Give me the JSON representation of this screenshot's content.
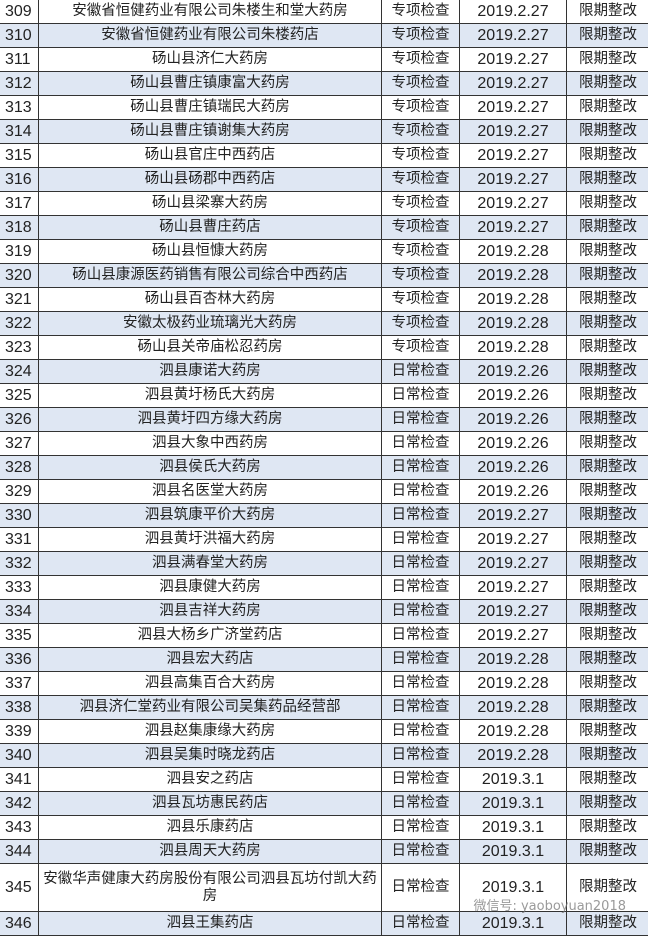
{
  "rows": [
    {
      "no": "309",
      "name": "安徽省恒健药业有限公司朱楼生和堂大药房",
      "type": "专项检查",
      "date": "2019.2.27",
      "result": "限期整改"
    },
    {
      "no": "310",
      "name": "安徽省恒健药业有限公司朱楼药店",
      "type": "专项检查",
      "date": "2019.2.27",
      "result": "限期整改"
    },
    {
      "no": "311",
      "name": "砀山县济仁大药房",
      "type": "专项检查",
      "date": "2019.2.27",
      "result": "限期整改"
    },
    {
      "no": "312",
      "name": "砀山县曹庄镇康富大药房",
      "type": "专项检查",
      "date": "2019.2.27",
      "result": "限期整改"
    },
    {
      "no": "313",
      "name": "砀山县曹庄镇瑞民大药房",
      "type": "专项检查",
      "date": "2019.2.27",
      "result": "限期整改"
    },
    {
      "no": "314",
      "name": "砀山县曹庄镇谢集大药房",
      "type": "专项检查",
      "date": "2019.2.27",
      "result": "限期整改"
    },
    {
      "no": "315",
      "name": "砀山县官庄中西药店",
      "type": "专项检查",
      "date": "2019.2.27",
      "result": "限期整改"
    },
    {
      "no": "316",
      "name": "砀山县砀郡中西药店",
      "type": "专项检查",
      "date": "2019.2.27",
      "result": "限期整改"
    },
    {
      "no": "317",
      "name": "砀山县梁寨大药房",
      "type": "专项检查",
      "date": "2019.2.27",
      "result": "限期整改"
    },
    {
      "no": "318",
      "name": "砀山县曹庄药店",
      "type": "专项检查",
      "date": "2019.2.27",
      "result": "限期整改"
    },
    {
      "no": "319",
      "name": "砀山县恒慷大药房",
      "type": "专项检查",
      "date": "2019.2.28",
      "result": "限期整改"
    },
    {
      "no": "320",
      "name": "砀山县康源医药销售有限公司综合中西药店",
      "type": "专项检查",
      "date": "2019.2.28",
      "result": "限期整改"
    },
    {
      "no": "321",
      "name": "砀山县百杏林大药房",
      "type": "专项检查",
      "date": "2019.2.28",
      "result": "限期整改"
    },
    {
      "no": "322",
      "name": "安徽太极药业琉璃光大药房",
      "type": "专项检查",
      "date": "2019.2.28",
      "result": "限期整改"
    },
    {
      "no": "323",
      "name": "砀山县关帝庙松忍药房",
      "type": "专项检查",
      "date": "2019.2.28",
      "result": "限期整改"
    },
    {
      "no": "324",
      "name": "泗县康诺大药房",
      "type": "日常检查",
      "date": "2019.2.26",
      "result": "限期整改"
    },
    {
      "no": "325",
      "name": "泗县黄圩杨氏大药房",
      "type": "日常检查",
      "date": "2019.2.26",
      "result": "限期整改"
    },
    {
      "no": "326",
      "name": "泗县黄圩四方缘大药房",
      "type": "日常检查",
      "date": "2019.2.26",
      "result": "限期整改"
    },
    {
      "no": "327",
      "name": "泗县大象中西药房",
      "type": "日常检查",
      "date": "2019.2.26",
      "result": "限期整改"
    },
    {
      "no": "328",
      "name": "泗县侯氏大药房",
      "type": "日常检查",
      "date": "2019.2.26",
      "result": "限期整改"
    },
    {
      "no": "329",
      "name": "泗县名医堂大药房",
      "type": "日常检查",
      "date": "2019.2.26",
      "result": "限期整改"
    },
    {
      "no": "330",
      "name": "泗县筑康平价大药房",
      "type": "日常检查",
      "date": "2019.2.27",
      "result": "限期整改"
    },
    {
      "no": "331",
      "name": "泗县黄圩洪福大药房",
      "type": "日常检查",
      "date": "2019.2.27",
      "result": "限期整改"
    },
    {
      "no": "332",
      "name": "泗县满春堂大药房",
      "type": "日常检查",
      "date": "2019.2.27",
      "result": "限期整改"
    },
    {
      "no": "333",
      "name": "泗县康健大药房",
      "type": "日常检查",
      "date": "2019.2.27",
      "result": "限期整改"
    },
    {
      "no": "334",
      "name": "泗县吉祥大药房",
      "type": "日常检查",
      "date": "2019.2.27",
      "result": "限期整改"
    },
    {
      "no": "335",
      "name": "泗县大杨乡广济堂药店",
      "type": "日常检查",
      "date": "2019.2.27",
      "result": "限期整改"
    },
    {
      "no": "336",
      "name": "泗县宏大药店",
      "type": "日常检查",
      "date": "2019.2.28",
      "result": "限期整改"
    },
    {
      "no": "337",
      "name": "泗县高集百合大药房",
      "type": "日常检查",
      "date": "2019.2.28",
      "result": "限期整改"
    },
    {
      "no": "338",
      "name": "泗县济仁堂药业有限公司吴集药品经营部",
      "type": "日常检查",
      "date": "2019.2.28",
      "result": "限期整改"
    },
    {
      "no": "339",
      "name": "泗县赵集康缘大药房",
      "type": "日常检查",
      "date": "2019.2.28",
      "result": "限期整改"
    },
    {
      "no": "340",
      "name": "泗县吴集时晓龙药店",
      "type": "日常检查",
      "date": "2019.2.28",
      "result": "限期整改"
    },
    {
      "no": "341",
      "name": "泗县安之药店",
      "type": "日常检查",
      "date": "2019.3.1",
      "result": "限期整改"
    },
    {
      "no": "342",
      "name": "泗县瓦坊惠民药店",
      "type": "日常检查",
      "date": "2019.3.1",
      "result": "限期整改"
    },
    {
      "no": "343",
      "name": "泗县乐康药店",
      "type": "日常检查",
      "date": "2019.3.1",
      "result": "限期整改"
    },
    {
      "no": "344",
      "name": "泗县周天大药房",
      "type": "日常检查",
      "date": "2019.3.1",
      "result": "限期整改"
    },
    {
      "no": "345",
      "name": "安徽华声健康大药房股份有限公司泗县瓦坊付凯大药房",
      "type": "日常检查",
      "date": "2019.3.1",
      "result": "限期整改"
    },
    {
      "no": "346",
      "name": "泗县王集药店",
      "type": "日常检查",
      "date": "2019.3.1",
      "result": "限期整改"
    }
  ],
  "watermark": "微信号: yaoboyuan2018",
  "colors": {
    "alt_row": "#dfe7f3",
    "border": "#333333"
  }
}
